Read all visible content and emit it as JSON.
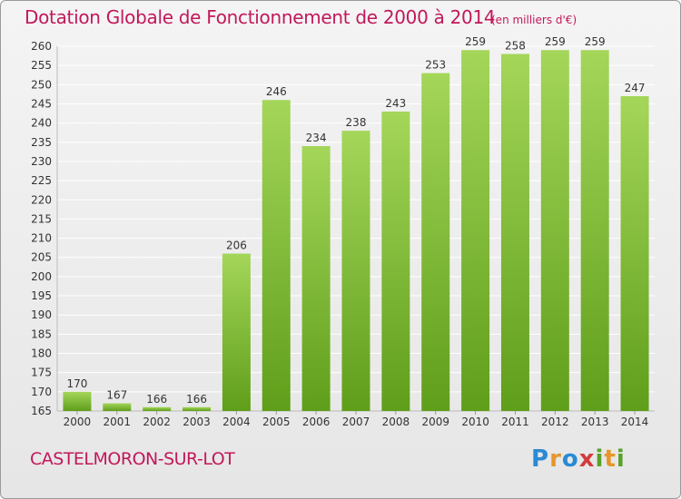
{
  "header": {
    "title": "Dotation Globale de Fonctionnement de 2000 à 2014",
    "unit": "(en milliers d'€)"
  },
  "footer": {
    "place": "CASTELMORON-SUR-LOT",
    "logo_text": "Proxiti"
  },
  "colors": {
    "title": "#c2185b",
    "bar_light": "#a4d65a",
    "bar_dark": "#5f9e1a",
    "grid": "#ffffff"
  },
  "chart_data": {
    "type": "bar",
    "title": "Dotation Globale de Fonctionnement de 2000 à 2014",
    "unit": "(en milliers d'€)",
    "categories": [
      "2000",
      "2001",
      "2002",
      "2003",
      "2004",
      "2005",
      "2006",
      "2007",
      "2008",
      "2009",
      "2010",
      "2011",
      "2012",
      "2013",
      "2014"
    ],
    "values": [
      170,
      167,
      166,
      166,
      206,
      246,
      234,
      238,
      243,
      253,
      259,
      258,
      259,
      259,
      247
    ],
    "ylim": [
      165,
      260
    ],
    "yticks": [
      165,
      170,
      175,
      180,
      185,
      190,
      195,
      200,
      205,
      210,
      215,
      220,
      225,
      230,
      235,
      240,
      245,
      250,
      255,
      260
    ],
    "grid": true
  }
}
